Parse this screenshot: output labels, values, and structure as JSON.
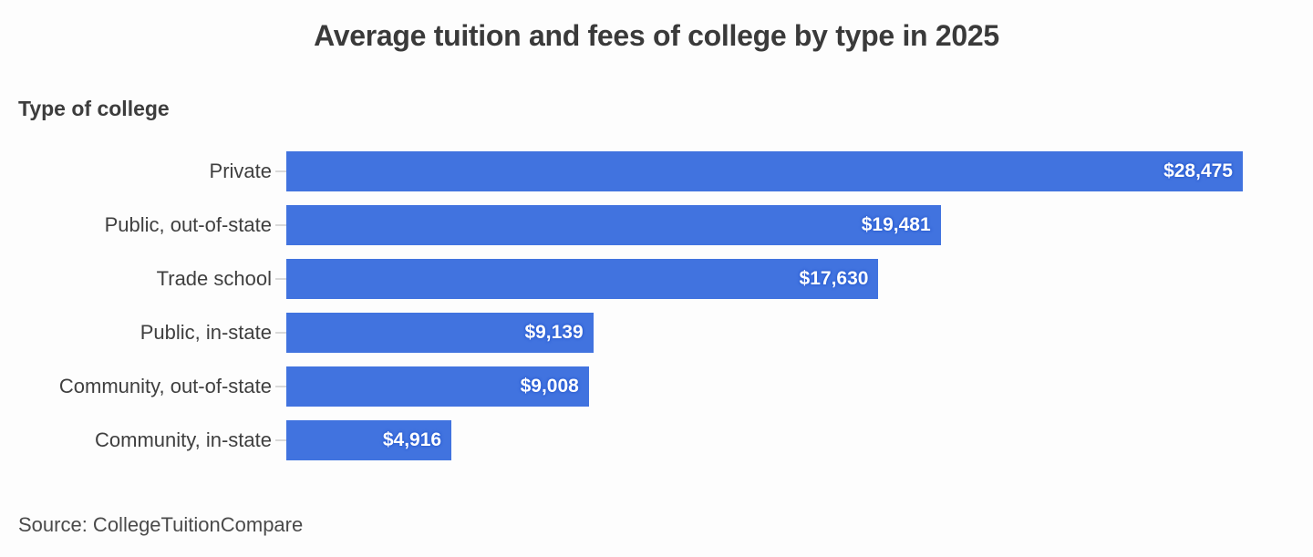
{
  "title": "Average tuition and fees of college by type in 2025",
  "axis_label": "Type of college",
  "source": "Source: CollegeTuitionCompare",
  "colors": {
    "bar": "#4173df",
    "title_text": "#3a3a3a",
    "category_text": "#3f3f3f",
    "value_text": "#ffffff",
    "background": "#fdfdfd",
    "tick": "#d9d9d9"
  },
  "chart_data": {
    "type": "bar",
    "orientation": "horizontal",
    "title": "Average tuition and fees of college by type in 2025",
    "ylabel": "Type of college",
    "xlabel": "",
    "categories": [
      "Private",
      "Public, out-of-state",
      "Trade school",
      "Public, in-state",
      "Community, out-of-state",
      "Community, in-state"
    ],
    "values": [
      28475,
      19481,
      17630,
      9139,
      9008,
      4916
    ],
    "value_labels": [
      "$28,475",
      "$19,481",
      "$17,630",
      "$9,139",
      "$9,008",
      "$4,916"
    ],
    "xlim": [
      0,
      28475
    ],
    "grid": false,
    "legend": false,
    "value_label_position": "inside-end",
    "source": "Source: CollegeTuitionCompare"
  }
}
